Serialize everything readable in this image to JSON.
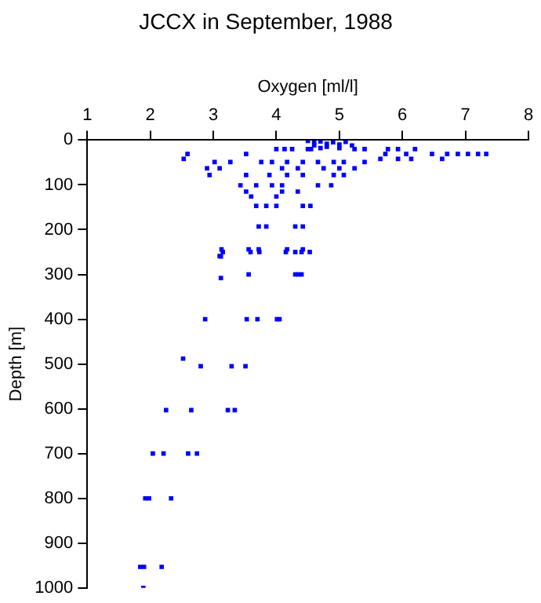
{
  "chart_data": {
    "type": "scatter",
    "title": "JCCX in September, 1988",
    "xlabel": "Oxygen [ml/l]",
    "ylabel": "Depth [m]",
    "xlim": [
      1,
      8
    ],
    "xticks": [
      1,
      2,
      3,
      4,
      5,
      6,
      7,
      8
    ],
    "ylim": [
      1000,
      0
    ],
    "yticks": [
      0,
      100,
      200,
      300,
      400,
      500,
      600,
      700,
      800,
      900,
      1000
    ],
    "grid": false,
    "legend": false,
    "marker": "square",
    "series": [
      {
        "color": "#0000ff",
        "x": [
          4.5,
          4.6,
          4.7,
          4.8,
          4.9,
          5.0,
          5.1,
          4.6,
          4.8,
          5.0,
          5.2,
          4.55,
          4.7,
          4.0,
          4.13,
          4.25,
          4.5,
          5.24,
          5.4,
          5.77,
          5.93,
          6.2,
          2.59,
          3.52,
          5.73,
          6.06,
          6.47,
          6.71,
          6.88,
          7.04,
          7.2,
          7.33,
          2.53,
          5.65,
          5.93,
          6.14,
          6.63,
          3.02,
          3.27,
          3.76,
          3.93,
          4.17,
          4.42,
          4.66,
          4.91,
          5.07,
          5.4,
          2.9,
          3.1,
          4.09,
          4.34,
          4.75,
          5.0,
          5.24,
          2.94,
          3.52,
          3.89,
          4.17,
          4.42,
          4.91,
          5.07,
          3.43,
          3.68,
          3.93,
          4.09,
          4.66,
          4.87,
          3.52,
          4.09,
          4.34,
          3.6,
          4.0,
          3.68,
          3.84,
          4.0,
          4.42,
          4.54,
          3.72,
          3.84,
          4.3,
          4.42,
          3.13,
          3.56,
          3.72,
          4.17,
          4.42,
          3.1,
          3.15,
          3.59,
          3.73,
          4.15,
          4.3,
          4.4,
          4.53,
          3.12,
          3.56,
          4.3,
          4.35,
          4.4,
          3.12,
          2.87,
          3.53,
          3.7,
          4.01,
          4.05,
          2.52,
          2.8,
          3.29,
          3.51,
          2.25,
          2.65,
          3.23,
          3.34,
          2.04,
          2.21,
          2.6,
          2.74,
          1.92,
          1.98,
          2.33,
          1.84,
          1.9,
          2.18,
          1.89
        ],
        "values": [
          2,
          5,
          3,
          8,
          5,
          10,
          4,
          12,
          15,
          18,
          12,
          20,
          18,
          20,
          20,
          20,
          20,
          20,
          20,
          20,
          20,
          20,
          31,
          31,
          31,
          31,
          31,
          31,
          31,
          31,
          31,
          31,
          42,
          42,
          42,
          42,
          42,
          49,
          49,
          49,
          49,
          49,
          49,
          49,
          49,
          49,
          49,
          63,
          63,
          63,
          63,
          63,
          63,
          63,
          78,
          78,
          78,
          78,
          78,
          78,
          78,
          101,
          101,
          101,
          101,
          101,
          101,
          115,
          115,
          115,
          126,
          126,
          147,
          147,
          147,
          147,
          147,
          193,
          193,
          193,
          193,
          244,
          244,
          244,
          244,
          244,
          259,
          250,
          250,
          250,
          250,
          250,
          250,
          250,
          260,
          300,
          300,
          300,
          300,
          308,
          400,
          400,
          400,
          400,
          400,
          488,
          505,
          505,
          505,
          603,
          603,
          603,
          603,
          700,
          700,
          700,
          700,
          800,
          800,
          800,
          953,
          953,
          953,
          1000
        ]
      }
    ]
  }
}
